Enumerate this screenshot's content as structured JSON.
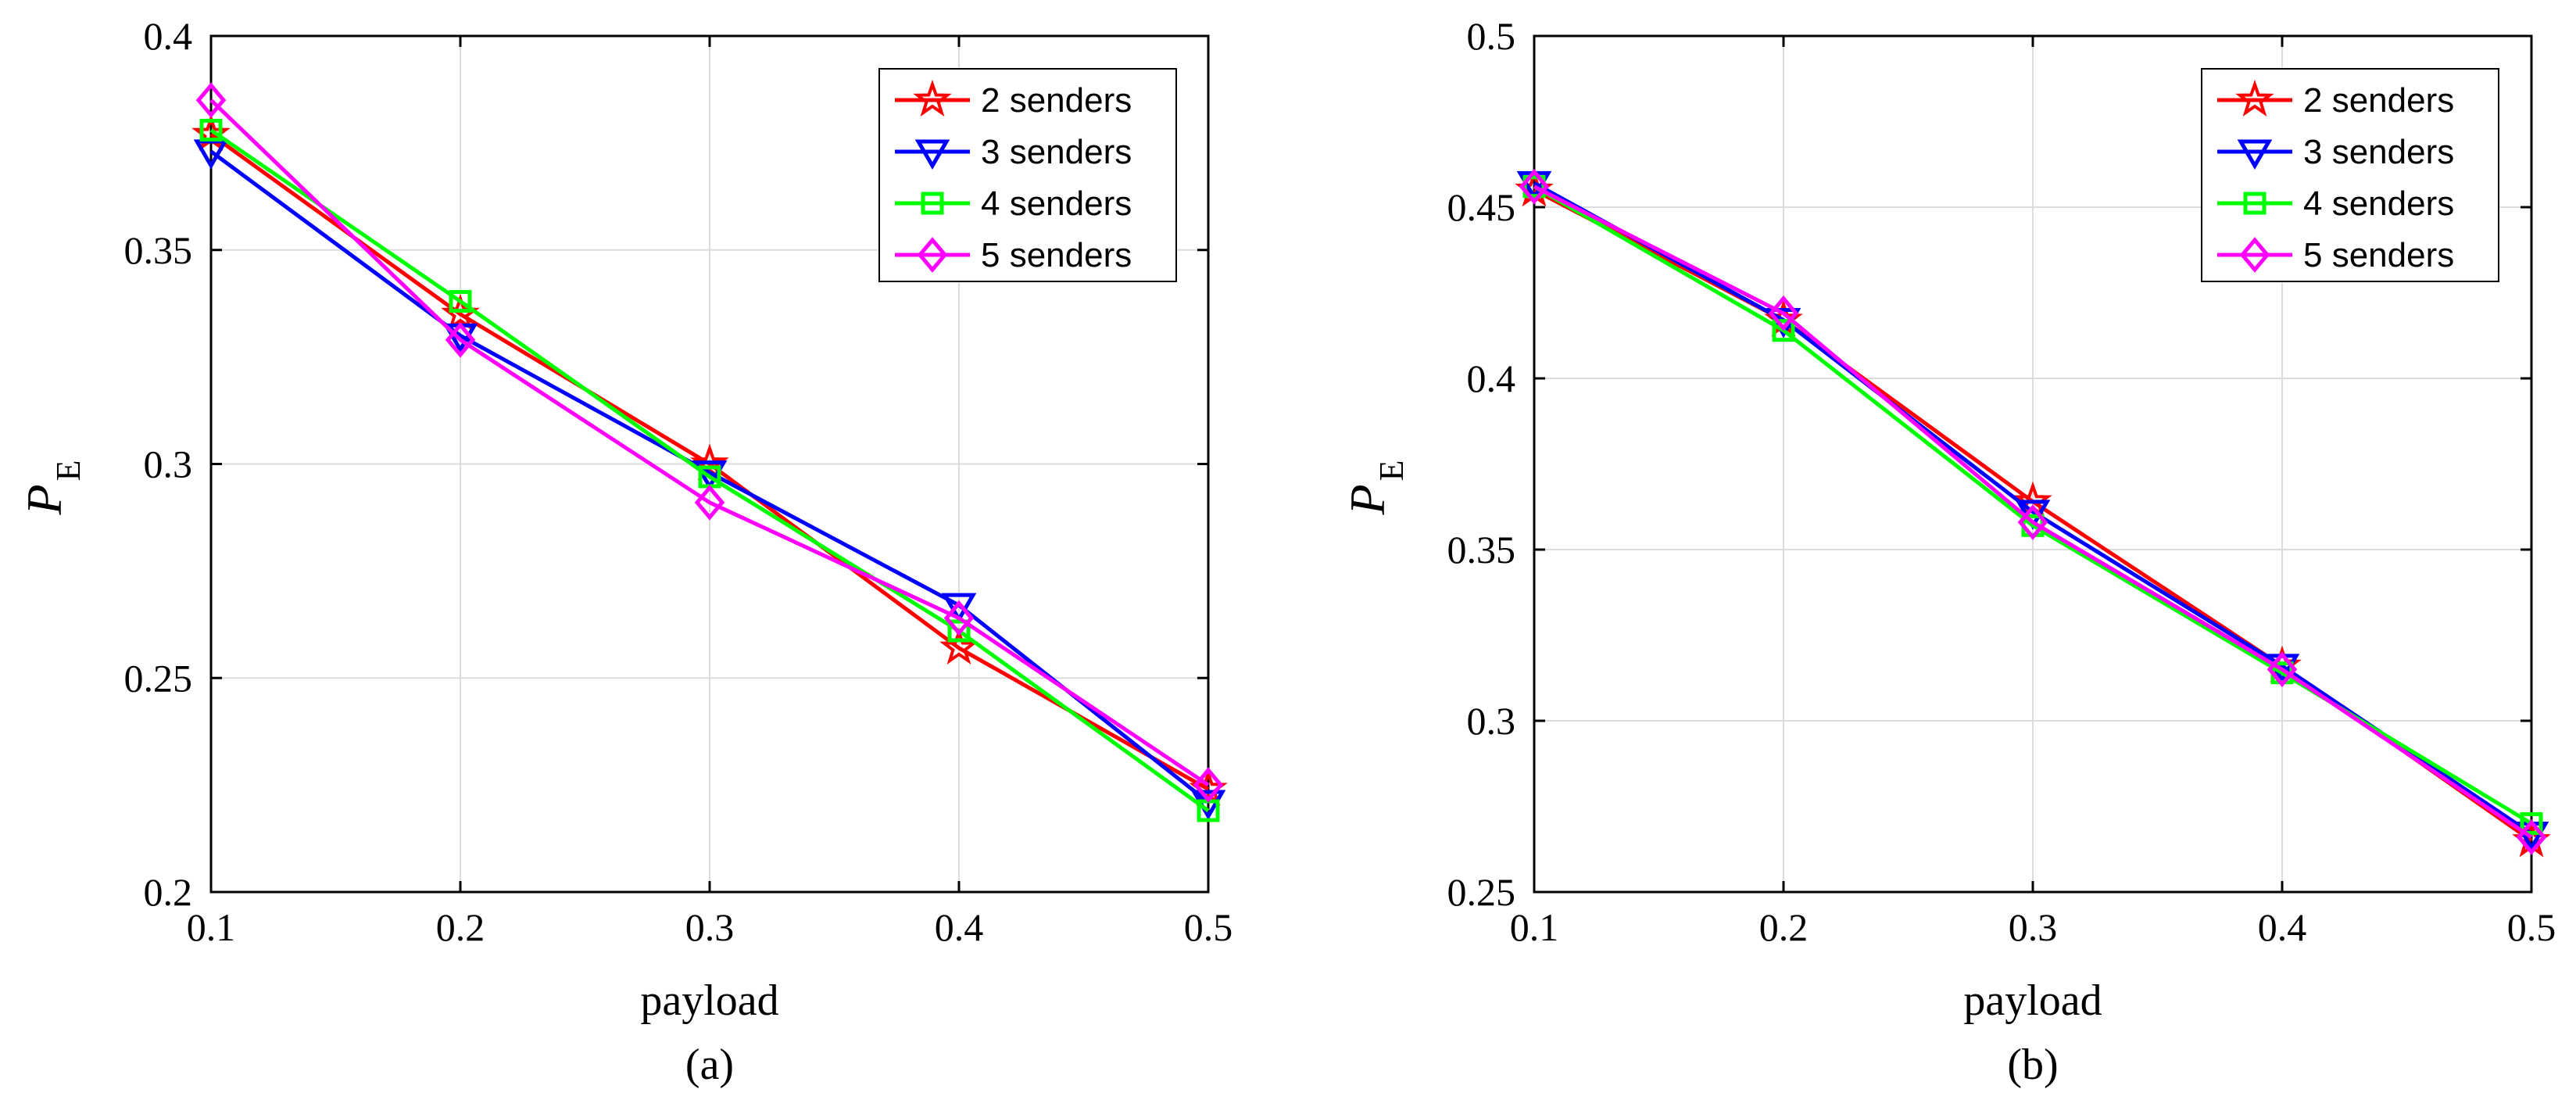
{
  "chart_data": [
    {
      "type": "line",
      "caption": "(a)",
      "xlabel": "payload",
      "ylabel": {
        "main": "P",
        "sub": "E"
      },
      "x": [
        0.1,
        0.2,
        0.3,
        0.4,
        0.5
      ],
      "xlim": [
        0.1,
        0.5
      ],
      "ylim": [
        0.2,
        0.4
      ],
      "xticks": [
        "0.1",
        "0.2",
        "0.3",
        "0.4",
        "0.5"
      ],
      "yticks": [
        "0.2",
        "0.25",
        "0.3",
        "0.35",
        "0.4"
      ],
      "ytick_values": [
        0.2,
        0.25,
        0.3,
        0.35,
        0.4
      ],
      "grid": true,
      "legend_position": "top-right",
      "series": [
        {
          "name": "2 senders",
          "color": "#ff0000",
          "marker": "star",
          "values": [
            0.377,
            0.335,
            0.3,
            0.257,
            0.224
          ]
        },
        {
          "name": "3 senders",
          "color": "#0000ff",
          "marker": "triangle-down",
          "values": [
            0.373,
            0.33,
            0.298,
            0.267,
            0.221
          ]
        },
        {
          "name": "4 senders",
          "color": "#00ff00",
          "marker": "square",
          "values": [
            0.378,
            0.338,
            0.297,
            0.261,
            0.219
          ]
        },
        {
          "name": "5 senders",
          "color": "#ff00ff",
          "marker": "diamond",
          "values": [
            0.385,
            0.329,
            0.291,
            0.264,
            0.225
          ]
        }
      ]
    },
    {
      "type": "line",
      "caption": "(b)",
      "xlabel": "payload",
      "ylabel": {
        "main": "P",
        "sub": "E"
      },
      "x": [
        0.1,
        0.2,
        0.3,
        0.4,
        0.5
      ],
      "xlim": [
        0.1,
        0.5
      ],
      "ylim": [
        0.25,
        0.5
      ],
      "xticks": [
        "0.1",
        "0.2",
        "0.3",
        "0.4",
        "0.5"
      ],
      "yticks": [
        "0.25",
        "0.3",
        "0.35",
        "0.4",
        "0.45",
        "0.5"
      ],
      "ytick_values": [
        0.25,
        0.3,
        0.35,
        0.4,
        0.45,
        0.5
      ],
      "grid": true,
      "legend_position": "top-right",
      "series": [
        {
          "name": "2 senders",
          "color": "#ff0000",
          "marker": "star",
          "values": [
            0.455,
            0.417,
            0.364,
            0.316,
            0.265
          ]
        },
        {
          "name": "3 senders",
          "color": "#0000ff",
          "marker": "triangle-down",
          "values": [
            0.457,
            0.417,
            0.361,
            0.316,
            0.267
          ]
        },
        {
          "name": "4 senders",
          "color": "#00ff00",
          "marker": "square",
          "values": [
            0.456,
            0.414,
            0.357,
            0.314,
            0.27
          ]
        },
        {
          "name": "5 senders",
          "color": "#ff00ff",
          "marker": "diamond",
          "values": [
            0.456,
            0.419,
            0.358,
            0.315,
            0.266
          ]
        }
      ]
    }
  ]
}
